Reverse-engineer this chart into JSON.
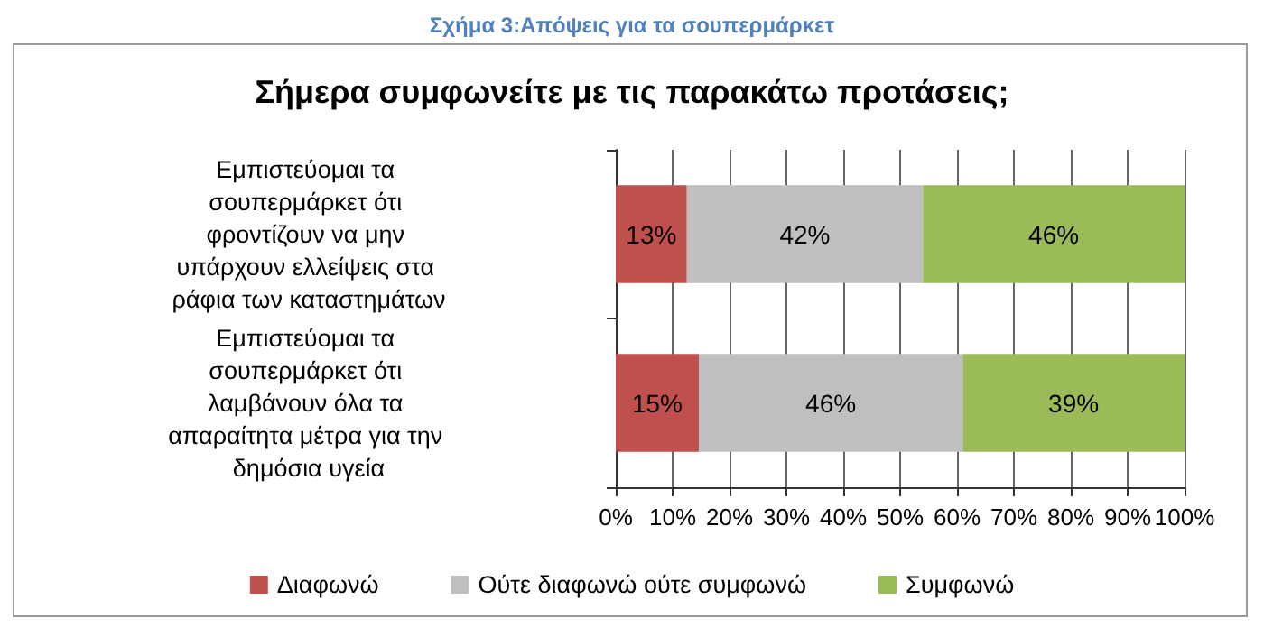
{
  "chart_data": {
    "type": "bar",
    "orientation": "horizontal",
    "stacked": true,
    "title": "Σχήμα 3:Απόψεις για τα σουπερμάρκετ",
    "subtitle": "Σήμερα συμφωνείτε με τις παρακάτω προτάσεις;",
    "categories": [
      "Εμπιστεύομαι τα σουπερμάρκετ ότι φροντίζουν να μην υπάρχουν ελλείψεις στα ράφια των καταστημάτων",
      "Εμπιστεύομαι τα σουπερμάρκετ ότι λαμβάνουν όλα τα απαραίτητα μέτρα για την δημόσια υγεία"
    ],
    "series": [
      {
        "name": "Διαφωνώ",
        "color": "#c0504d",
        "values": [
          12.5,
          14.6
        ],
        "value_labels": [
          "13%",
          "15%"
        ]
      },
      {
        "name": "Ούτε διαφωνώ ούτε συμφωνώ",
        "color": "#bfbfbf",
        "values": [
          41.5,
          46.4
        ],
        "value_labels": [
          "42%",
          "46%"
        ]
      },
      {
        "name": "Συμφωνώ",
        "color": "#9bbb59",
        "values": [
          46,
          39
        ],
        "value_labels": [
          "46%",
          "39%"
        ]
      }
    ],
    "xlim": [
      0,
      100
    ],
    "xticks": [
      {
        "value": 0,
        "label": "0%"
      },
      {
        "value": 10,
        "label": "10%"
      },
      {
        "value": 20,
        "label": "20%"
      },
      {
        "value": 30,
        "label": "30%"
      },
      {
        "value": 40,
        "label": "40%"
      },
      {
        "value": 50,
        "label": "50%"
      },
      {
        "value": 60,
        "label": "60%"
      },
      {
        "value": 70,
        "label": "70%"
      },
      {
        "value": 80,
        "label": "80%"
      },
      {
        "value": 90,
        "label": "90%"
      },
      {
        "value": 100,
        "label": "100%"
      }
    ],
    "grid": "x",
    "legend": "bottom"
  }
}
